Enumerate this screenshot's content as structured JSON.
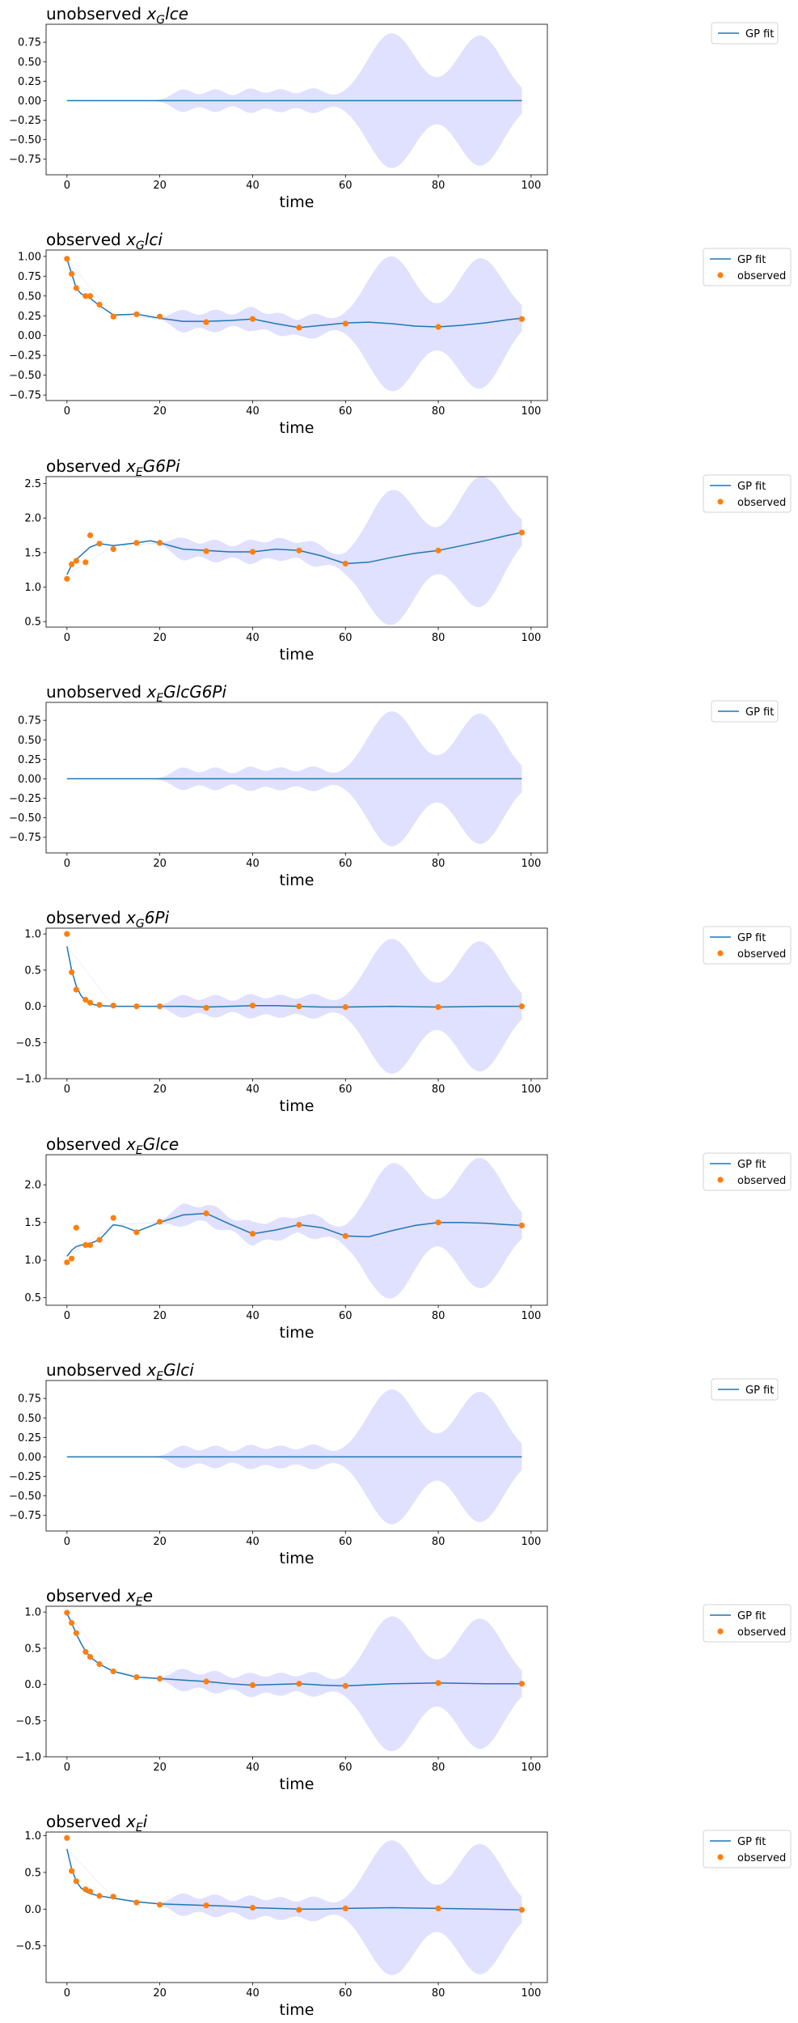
{
  "figure": {
    "colors": {
      "fit": "#1f77b4",
      "observed": "#ff7f0e",
      "band": "#e0e0ff"
    }
  },
  "chart_data": [
    {
      "type": "line",
      "title_prefix": "unobserved ",
      "var_base": "x",
      "var_sub": "G",
      "var_rest": "lce",
      "xlabel": "time",
      "xlim": [
        -4.5,
        103.5
      ],
      "ylim": [
        -0.95,
        0.98
      ],
      "xticks": [
        0,
        20,
        40,
        60,
        80,
        100
      ],
      "yticks": [
        -0.75,
        -0.5,
        -0.25,
        0.0,
        0.25,
        0.5,
        0.75
      ],
      "ytick_labels": [
        "−0.75",
        "−0.50",
        "−0.25",
        "0.00",
        "0.25",
        "0.50",
        "0.75"
      ],
      "legend": [
        "GP fit"
      ],
      "fit": {
        "x": [
          0,
          98
        ],
        "y": [
          0.0,
          0.0
        ]
      },
      "band_base": {
        "x": [
          0,
          98
        ],
        "y": [
          0.0,
          0.0
        ]
      },
      "observed": null
    },
    {
      "type": "line",
      "title_prefix": "observed ",
      "var_base": "x",
      "var_sub": "G",
      "var_rest": "lci",
      "xlabel": "time",
      "xlim": [
        -4.5,
        103.5
      ],
      "ylim": [
        -0.82,
        1.08
      ],
      "xticks": [
        0,
        20,
        40,
        60,
        80,
        100
      ],
      "yticks": [
        -0.75,
        -0.5,
        -0.25,
        0.0,
        0.25,
        0.5,
        0.75,
        1.0
      ],
      "ytick_labels": [
        "−0.75",
        "−0.50",
        "−0.25",
        "0.00",
        "0.25",
        "0.50",
        "0.75",
        "1.00"
      ],
      "legend": [
        "GP fit",
        "observed"
      ],
      "fit": {
        "x": [
          0,
          1,
          2,
          3,
          4,
          5,
          7,
          10,
          15,
          20,
          25,
          30,
          35,
          40,
          45,
          50,
          55,
          60,
          65,
          70,
          75,
          80,
          85,
          90,
          95,
          98
        ],
        "y": [
          0.97,
          0.78,
          0.6,
          0.53,
          0.5,
          0.47,
          0.38,
          0.26,
          0.27,
          0.22,
          0.18,
          0.18,
          0.19,
          0.21,
          0.15,
          0.1,
          0.13,
          0.16,
          0.17,
          0.15,
          0.12,
          0.11,
          0.13,
          0.16,
          0.2,
          0.22
        ]
      },
      "band_base": {
        "x": [
          0,
          10,
          20,
          25,
          30,
          35,
          40,
          45,
          50,
          55,
          60,
          65,
          70,
          75,
          80,
          85,
          90,
          95,
          98
        ],
        "y": [
          0.97,
          0.25,
          0.22,
          0.18,
          0.18,
          0.19,
          0.21,
          0.15,
          0.1,
          0.13,
          0.16,
          0.17,
          0.15,
          0.12,
          0.11,
          0.13,
          0.16,
          0.2,
          0.22
        ]
      },
      "observed": {
        "x": [
          0,
          1,
          2,
          4,
          5,
          7,
          10,
          15,
          20,
          30,
          40,
          50,
          60,
          80,
          98
        ],
        "y": [
          0.97,
          0.78,
          0.6,
          0.5,
          0.5,
          0.39,
          0.24,
          0.27,
          0.24,
          0.17,
          0.21,
          0.1,
          0.15,
          0.11,
          0.21
        ]
      }
    },
    {
      "type": "line",
      "title_prefix": "observed ",
      "var_base": "x",
      "var_sub": "E",
      "var_rest": "G6Pi",
      "xlabel": "time",
      "xlim": [
        -4.5,
        103.5
      ],
      "ylim": [
        0.42,
        2.6
      ],
      "xticks": [
        0,
        20,
        40,
        60,
        80,
        100
      ],
      "yticks": [
        0.5,
        1.0,
        1.5,
        2.0,
        2.5
      ],
      "ytick_labels": [
        "0.5",
        "1.0",
        "1.5",
        "2.0",
        "2.5"
      ],
      "legend": [
        "GP fit",
        "observed"
      ],
      "fit": {
        "x": [
          0,
          1,
          2,
          3,
          4,
          5,
          7,
          10,
          15,
          18,
          20,
          25,
          30,
          35,
          40,
          45,
          50,
          55,
          60,
          65,
          70,
          75,
          80,
          85,
          90,
          95,
          98
        ],
        "y": [
          1.18,
          1.32,
          1.4,
          1.46,
          1.52,
          1.58,
          1.63,
          1.6,
          1.64,
          1.67,
          1.64,
          1.55,
          1.53,
          1.51,
          1.51,
          1.55,
          1.53,
          1.45,
          1.34,
          1.36,
          1.43,
          1.49,
          1.53,
          1.6,
          1.67,
          1.75,
          1.79
        ]
      },
      "band_base": {
        "x": [
          0,
          10,
          20,
          25,
          30,
          35,
          40,
          45,
          50,
          55,
          60,
          65,
          70,
          75,
          80,
          85,
          90,
          95,
          98
        ],
        "y": [
          1.18,
          1.6,
          1.64,
          1.55,
          1.53,
          1.51,
          1.51,
          1.55,
          1.53,
          1.45,
          1.34,
          1.36,
          1.43,
          1.49,
          1.53,
          1.6,
          1.67,
          1.75,
          1.79
        ]
      },
      "observed": {
        "x": [
          0,
          1,
          2,
          4,
          5,
          7,
          10,
          15,
          20,
          30,
          40,
          50,
          60,
          80,
          98
        ],
        "y": [
          1.12,
          1.33,
          1.38,
          1.36,
          1.75,
          1.63,
          1.55,
          1.64,
          1.64,
          1.52,
          1.51,
          1.53,
          1.34,
          1.53,
          1.79
        ]
      }
    },
    {
      "type": "line",
      "title_prefix": "unobserved ",
      "var_base": "x",
      "var_sub": "E",
      "var_rest": "GlcG6Pi",
      "xlabel": "time",
      "xlim": [
        -4.5,
        103.5
      ],
      "ylim": [
        -0.95,
        0.98
      ],
      "xticks": [
        0,
        20,
        40,
        60,
        80,
        100
      ],
      "yticks": [
        -0.75,
        -0.5,
        -0.25,
        0.0,
        0.25,
        0.5,
        0.75
      ],
      "ytick_labels": [
        "−0.75",
        "−0.50",
        "−0.25",
        "0.00",
        "0.25",
        "0.50",
        "0.75"
      ],
      "legend": [
        "GP fit"
      ],
      "fit": {
        "x": [
          0,
          98
        ],
        "y": [
          0.0,
          0.0
        ]
      },
      "band_base": {
        "x": [
          0,
          98
        ],
        "y": [
          0.0,
          0.0
        ]
      },
      "observed": null
    },
    {
      "type": "line",
      "title_prefix": "observed ",
      "var_base": "x",
      "var_sub": "G",
      "var_rest": "6Pi",
      "xlabel": "time",
      "xlim": [
        -4.5,
        103.5
      ],
      "ylim": [
        -1.0,
        1.08
      ],
      "xticks": [
        0,
        20,
        40,
        60,
        80,
        100
      ],
      "yticks": [
        -1.0,
        -0.5,
        0.0,
        0.5,
        1.0
      ],
      "ytick_labels": [
        "−1.0",
        "−0.5",
        "0.0",
        "0.5",
        "1.0"
      ],
      "legend": [
        "GP fit",
        "observed"
      ],
      "fit": {
        "x": [
          0,
          1,
          2,
          3,
          4,
          5,
          6,
          7,
          10,
          15,
          20,
          25,
          30,
          35,
          40,
          45,
          50,
          55,
          60,
          70,
          80,
          90,
          98
        ],
        "y": [
          0.83,
          0.5,
          0.28,
          0.15,
          0.08,
          0.04,
          0.02,
          0.01,
          0.0,
          0.0,
          0.0,
          0.0,
          -0.01,
          0.0,
          0.01,
          0.01,
          0.0,
          -0.01,
          -0.01,
          0.0,
          -0.01,
          0.0,
          0.0
        ]
      },
      "band_base": {
        "x": [
          0,
          10,
          20,
          98
        ],
        "y": [
          0.83,
          0.0,
          0.0,
          0.0
        ]
      },
      "observed": {
        "x": [
          0,
          1,
          2,
          4,
          5,
          7,
          10,
          15,
          20,
          30,
          40,
          50,
          60,
          80,
          98
        ],
        "y": [
          1.0,
          0.47,
          0.23,
          0.09,
          0.05,
          0.02,
          0.01,
          0.0,
          0.0,
          -0.02,
          0.01,
          0.0,
          -0.01,
          -0.01,
          0.0
        ]
      }
    },
    {
      "type": "line",
      "title_prefix": "observed ",
      "var_base": "x",
      "var_sub": "E",
      "var_rest": "Glce",
      "xlabel": "time",
      "xlim": [
        -4.5,
        103.5
      ],
      "ylim": [
        0.4,
        2.4
      ],
      "xticks": [
        0,
        20,
        40,
        60,
        80,
        100
      ],
      "yticks": [
        0.5,
        1.0,
        1.5,
        2.0
      ],
      "ytick_labels": [
        "0.5",
        "1.0",
        "1.5",
        "2.0"
      ],
      "legend": [
        "GP fit",
        "observed"
      ],
      "fit": {
        "x": [
          0,
          1,
          2,
          3,
          4,
          5,
          7,
          10,
          12,
          15,
          20,
          25,
          30,
          35,
          40,
          45,
          50,
          55,
          60,
          65,
          70,
          75,
          80,
          85,
          90,
          95,
          98
        ],
        "y": [
          1.05,
          1.13,
          1.18,
          1.2,
          1.21,
          1.22,
          1.27,
          1.47,
          1.45,
          1.38,
          1.5,
          1.6,
          1.62,
          1.48,
          1.35,
          1.4,
          1.47,
          1.43,
          1.32,
          1.31,
          1.39,
          1.46,
          1.5,
          1.5,
          1.49,
          1.47,
          1.46
        ]
      },
      "band_base": {
        "x": [
          0,
          10,
          20,
          25,
          30,
          35,
          40,
          45,
          50,
          55,
          60,
          65,
          70,
          75,
          80,
          85,
          90,
          95,
          98
        ],
        "y": [
          1.05,
          1.47,
          1.5,
          1.6,
          1.62,
          1.48,
          1.35,
          1.4,
          1.47,
          1.43,
          1.32,
          1.31,
          1.39,
          1.46,
          1.5,
          1.5,
          1.49,
          1.47,
          1.46
        ]
      },
      "observed": {
        "x": [
          0,
          1,
          2,
          4,
          5,
          7,
          10,
          15,
          20,
          30,
          40,
          50,
          60,
          80,
          98
        ],
        "y": [
          0.97,
          1.02,
          1.43,
          1.2,
          1.2,
          1.27,
          1.56,
          1.37,
          1.51,
          1.62,
          1.35,
          1.47,
          1.32,
          1.5,
          1.46
        ]
      }
    },
    {
      "type": "line",
      "title_prefix": "unobserved ",
      "var_base": "x",
      "var_sub": "E",
      "var_rest": "Glci",
      "xlabel": "time",
      "xlim": [
        -4.5,
        103.5
      ],
      "ylim": [
        -0.95,
        0.98
      ],
      "xticks": [
        0,
        20,
        40,
        60,
        80,
        100
      ],
      "yticks": [
        -0.75,
        -0.5,
        -0.25,
        0.0,
        0.25,
        0.5,
        0.75
      ],
      "ytick_labels": [
        "−0.75",
        "−0.50",
        "−0.25",
        "0.00",
        "0.25",
        "0.50",
        "0.75"
      ],
      "legend": [
        "GP fit"
      ],
      "fit": {
        "x": [
          0,
          98
        ],
        "y": [
          0.0,
          0.0
        ]
      },
      "band_base": {
        "x": [
          0,
          98
        ],
        "y": [
          0.0,
          0.0
        ]
      },
      "observed": null
    },
    {
      "type": "line",
      "title_prefix": "observed ",
      "var_base": "x",
      "var_sub": "E",
      "var_rest": "e",
      "xlabel": "time",
      "xlim": [
        -4.5,
        103.5
      ],
      "ylim": [
        -1.0,
        1.08
      ],
      "xticks": [
        0,
        20,
        40,
        60,
        80,
        100
      ],
      "yticks": [
        -1.0,
        -0.5,
        0.0,
        0.5,
        1.0
      ],
      "ytick_labels": [
        "−1.0",
        "−0.5",
        "0.0",
        "0.5",
        "1.0"
      ],
      "legend": [
        "GP fit",
        "observed"
      ],
      "fit": {
        "x": [
          0,
          1,
          2,
          3,
          4,
          5,
          7,
          10,
          15,
          20,
          25,
          30,
          35,
          40,
          45,
          50,
          55,
          60,
          70,
          80,
          90,
          98
        ],
        "y": [
          0.98,
          0.85,
          0.7,
          0.57,
          0.46,
          0.38,
          0.28,
          0.18,
          0.1,
          0.08,
          0.06,
          0.04,
          0.01,
          -0.01,
          0.0,
          0.01,
          -0.01,
          -0.02,
          0.01,
          0.02,
          0.01,
          0.01
        ]
      },
      "band_base": {
        "x": [
          0,
          10,
          20,
          30,
          40,
          50,
          60,
          70,
          80,
          90,
          98
        ],
        "y": [
          0.98,
          0.18,
          0.08,
          0.04,
          -0.01,
          0.01,
          -0.02,
          0.01,
          0.02,
          0.01,
          0.01
        ]
      },
      "observed": {
        "x": [
          0,
          1,
          2,
          4,
          5,
          7,
          10,
          15,
          20,
          30,
          40,
          50,
          60,
          80,
          98
        ],
        "y": [
          0.99,
          0.85,
          0.71,
          0.45,
          0.38,
          0.28,
          0.18,
          0.1,
          0.08,
          0.04,
          -0.01,
          0.01,
          -0.02,
          0.02,
          0.01
        ]
      }
    },
    {
      "type": "line",
      "title_prefix": "observed ",
      "var_base": "x",
      "var_sub": "E",
      "var_rest": "i",
      "xlabel": "time",
      "xlim": [
        -4.5,
        103.5
      ],
      "ylim": [
        -1.0,
        1.05
      ],
      "xticks": [
        0,
        20,
        40,
        60,
        80,
        100
      ],
      "yticks": [
        -0.5,
        0.0,
        0.5,
        1.0
      ],
      "ytick_labels": [
        "−0.5",
        "0.0",
        "0.5",
        "1.0"
      ],
      "legend": [
        "GP fit",
        "observed"
      ],
      "fit": {
        "x": [
          0,
          1,
          2,
          3,
          4,
          5,
          7,
          10,
          15,
          20,
          25,
          30,
          35,
          40,
          45,
          50,
          55,
          60,
          70,
          80,
          90,
          98
        ],
        "y": [
          0.82,
          0.55,
          0.38,
          0.29,
          0.24,
          0.21,
          0.18,
          0.15,
          0.1,
          0.07,
          0.06,
          0.05,
          0.04,
          0.02,
          0.01,
          0.0,
          0.0,
          0.01,
          0.02,
          0.01,
          0.0,
          -0.01
        ]
      },
      "band_base": {
        "x": [
          0,
          10,
          20,
          30,
          40,
          50,
          60,
          70,
          80,
          90,
          98
        ],
        "y": [
          0.82,
          0.15,
          0.07,
          0.05,
          0.02,
          0.0,
          0.01,
          0.02,
          0.01,
          0.0,
          -0.01
        ]
      },
      "observed": {
        "x": [
          0,
          1,
          2,
          4,
          5,
          7,
          10,
          15,
          20,
          30,
          40,
          50,
          60,
          80,
          98
        ],
        "y": [
          0.97,
          0.52,
          0.38,
          0.27,
          0.24,
          0.18,
          0.17,
          0.09,
          0.06,
          0.05,
          0.02,
          -0.01,
          0.01,
          0.01,
          -0.01
        ]
      }
    }
  ]
}
